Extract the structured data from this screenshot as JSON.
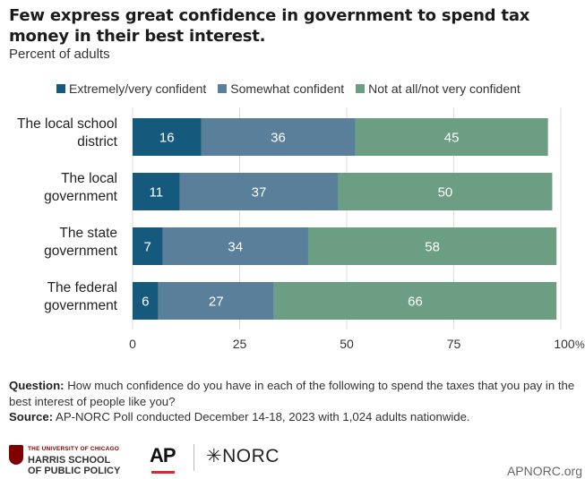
{
  "title": "Few express great confidence in government to spend tax money in their best interest.",
  "subtitle": "Percent of adults",
  "colors": {
    "series": [
      "#155a7d",
      "#5a7f9b",
      "#6b9e82"
    ],
    "gridline": "#dddddd",
    "text_light": "#ffffff"
  },
  "chart_data": {
    "type": "bar",
    "orientation": "horizontal",
    "stacked": true,
    "categories": [
      [
        "The local school",
        "district"
      ],
      [
        "The local",
        "government"
      ],
      [
        "The state",
        "government"
      ],
      [
        "The federal",
        "government"
      ]
    ],
    "series": [
      {
        "name": "Extremely/very confident",
        "values": [
          16,
          11,
          7,
          6
        ]
      },
      {
        "name": "Somewhat confident",
        "values": [
          36,
          37,
          34,
          27
        ]
      },
      {
        "name": "Not at all/not very confident",
        "values": [
          45,
          50,
          58,
          66
        ]
      }
    ],
    "xlim": [
      0,
      100
    ],
    "xticks": [
      "0",
      "25",
      "50",
      "75",
      "100"
    ],
    "xtick_suffix": "%",
    "grid": true,
    "legend": "top"
  },
  "footnote": {
    "question_label": "Question:",
    "question_text": " How much confidence do you have in each of the following to spend the taxes that you pay in the best interest of people like you?",
    "source_label": "Source:",
    "source_text": " AP-NORC Poll conducted December 14-18, 2023 with 1,024 adults nationwide."
  },
  "logos": {
    "uchicago_line1": "THE UNIVERSITY OF CHICAGO",
    "uchicago_line2": "HARRIS SCHOOL",
    "uchicago_line3": "OF PUBLIC POLICY",
    "ap": "AP",
    "norc": "✳NORC",
    "site": "APNORC.org"
  }
}
